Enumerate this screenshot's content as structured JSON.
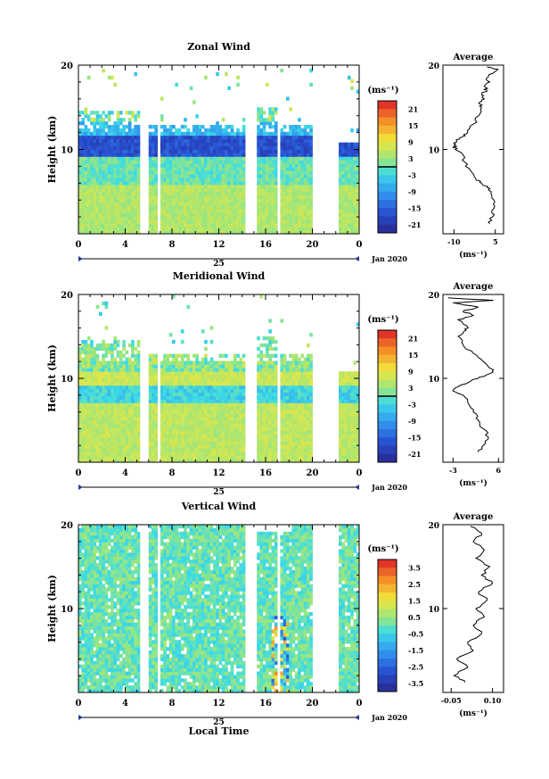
{
  "chart_data": [
    {
      "type": "heatmap",
      "title": "Zonal Wind",
      "ylabel": "Height (km)",
      "xlabel": "",
      "yticks": [
        "20",
        "10"
      ],
      "xticks": [
        "0",
        "4",
        "8",
        "12",
        "16",
        "20",
        "0"
      ],
      "date_label": "25",
      "month_label": "Jan 2020",
      "colorbar": {
        "unit": "(ms⁻¹)",
        "ticks": [
          "21",
          "15",
          "9",
          "3",
          "-3",
          "-9",
          "-15",
          "-21"
        ],
        "min": -24,
        "max": 24
      },
      "profile": {
        "title": "Average",
        "xticks": [
          "-10",
          "5"
        ],
        "xunit": "(ms⁻¹)",
        "yticks": [
          "20",
          "10"
        ],
        "xlim": [
          -14,
          8
        ],
        "points": [
          [
            3,
            1.2
          ],
          [
            4,
            2
          ],
          [
            4.5,
            3
          ],
          [
            4.5,
            4
          ],
          [
            3.5,
            5
          ],
          [
            2,
            5.5
          ],
          [
            0,
            6
          ],
          [
            -2,
            6.5
          ],
          [
            -4,
            7.5
          ],
          [
            -6,
            8.5
          ],
          [
            -7,
            9.5
          ],
          [
            -9.5,
            10
          ],
          [
            -10,
            10.5
          ],
          [
            -9,
            11
          ],
          [
            -7,
            11.5
          ],
          [
            -5,
            12
          ],
          [
            -3,
            13
          ],
          [
            -1,
            14
          ],
          [
            0,
            15
          ],
          [
            -1,
            15.5
          ],
          [
            1,
            16
          ],
          [
            0,
            16.5
          ],
          [
            2,
            17
          ],
          [
            1,
            17.5
          ],
          [
            3,
            18
          ],
          [
            2,
            18.5
          ],
          [
            4,
            19
          ],
          [
            6,
            19.5
          ],
          [
            2,
            19.8
          ]
        ]
      }
    },
    {
      "type": "heatmap",
      "title": "Meridional Wind",
      "ylabel": "Height (km)",
      "xlabel": "",
      "yticks": [
        "20",
        "10"
      ],
      "xticks": [
        "0",
        "4",
        "8",
        "12",
        "16",
        "20",
        "0"
      ],
      "date_label": "25",
      "month_label": "Jan 2020",
      "colorbar": {
        "unit": "(ms⁻¹)",
        "ticks": [
          "21",
          "15",
          "9",
          "3",
          "-3",
          "-9",
          "-15",
          "-21"
        ],
        "min": -24,
        "max": 24
      },
      "profile": {
        "title": "Average",
        "xticks": [
          "-3",
          "6"
        ],
        "xunit": "(ms⁻¹)",
        "yticks": [
          "20",
          "10"
        ],
        "xlim": [
          -5,
          7
        ],
        "points": [
          [
            2,
            1.2
          ],
          [
            3,
            2
          ],
          [
            4,
            3
          ],
          [
            3,
            4
          ],
          [
            2,
            5
          ],
          [
            1,
            6
          ],
          [
            0,
            7
          ],
          [
            -1,
            8
          ],
          [
            -3,
            8.5
          ],
          [
            -2,
            9
          ],
          [
            0,
            9.5
          ],
          [
            2,
            10
          ],
          [
            4,
            10.5
          ],
          [
            5,
            11
          ],
          [
            3,
            12
          ],
          [
            1,
            13
          ],
          [
            -1,
            14
          ],
          [
            -2,
            15
          ],
          [
            -1,
            15.5
          ],
          [
            0,
            16
          ],
          [
            -2,
            17
          ],
          [
            1,
            17.5
          ],
          [
            -1,
            18
          ],
          [
            2,
            18.5
          ],
          [
            -3,
            19
          ],
          [
            5,
            19.3
          ],
          [
            -4,
            19.6
          ]
        ]
      }
    },
    {
      "type": "heatmap",
      "title": "Vertical Wind",
      "ylabel": "Height (km)",
      "xlabel": "Local Time",
      "yticks": [
        "20",
        "10"
      ],
      "xticks": [
        "0",
        "4",
        "8",
        "12",
        "16",
        "20",
        "0"
      ],
      "date_label": "25",
      "month_label": "Jan 2020",
      "colorbar": {
        "unit": "(ms⁻¹)",
        "ticks": [
          "3.5",
          "2.5",
          "1.5",
          "0.5",
          "-0.5",
          "-1.5",
          "-2.5",
          "-3.5"
        ],
        "min": -4,
        "max": 4
      },
      "profile": {
        "title": "Average",
        "xticks": [
          "-0.05",
          "0.10"
        ],
        "xunit": "(ms⁻¹)",
        "yticks": [
          "20",
          "10"
        ],
        "xlim": [
          -0.08,
          0.14
        ],
        "points": [
          [
            0.0,
            1.2
          ],
          [
            -0.04,
            2
          ],
          [
            0.01,
            3
          ],
          [
            -0.03,
            4
          ],
          [
            0.03,
            5
          ],
          [
            0.01,
            6
          ],
          [
            0.06,
            7
          ],
          [
            0.03,
            8
          ],
          [
            0.07,
            9
          ],
          [
            0.04,
            10
          ],
          [
            0.08,
            11
          ],
          [
            0.05,
            12
          ],
          [
            0.1,
            13
          ],
          [
            0.06,
            14
          ],
          [
            0.09,
            15
          ],
          [
            0.04,
            16
          ],
          [
            0.07,
            17
          ],
          [
            0.03,
            18
          ],
          [
            0.06,
            19
          ],
          [
            0.02,
            19.8
          ]
        ]
      }
    }
  ]
}
